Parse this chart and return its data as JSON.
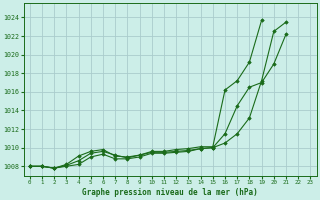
{
  "title": "Graphe pression niveau de la mer (hPa)",
  "background_color": "#cceee8",
  "grid_color": "#aacccc",
  "line_color": "#1a6b1a",
  "marker_color": "#1a6b1a",
  "xlim": [
    -0.5,
    23.5
  ],
  "ylim": [
    1007.0,
    1025.5
  ],
  "yticks": [
    1008,
    1010,
    1012,
    1014,
    1016,
    1018,
    1020,
    1022,
    1024
  ],
  "xticks": [
    0,
    1,
    2,
    3,
    4,
    5,
    6,
    7,
    8,
    9,
    10,
    11,
    12,
    13,
    14,
    15,
    16,
    17,
    18,
    19,
    20,
    21,
    22,
    23
  ],
  "series": [
    [
      1008.0,
      1008.0,
      1007.8,
      1008.0,
      1008.2,
      1009.0,
      1009.3,
      1008.8,
      1008.8,
      1009.0,
      1009.4,
      1009.4,
      1009.5,
      1009.6,
      1009.9,
      1010.0,
      1010.5,
      1011.5,
      1013.2,
      1017.2,
      1022.5,
      1023.5,
      null,
      null
    ],
    [
      1008.0,
      1008.0,
      1007.8,
      1008.1,
      1008.6,
      1009.4,
      1009.6,
      1009.2,
      1008.9,
      1009.2,
      1009.5,
      1009.5,
      1009.6,
      1009.7,
      1009.9,
      1010.0,
      1011.5,
      1014.5,
      1016.5,
      1017.0,
      1019.0,
      1022.2,
      null,
      null
    ],
    [
      1008.0,
      1008.0,
      1007.8,
      1008.2,
      1009.1,
      1009.6,
      1009.8,
      1009.1,
      1009.0,
      1009.2,
      1009.6,
      1009.6,
      1009.8,
      1009.9,
      1010.1,
      1010.1,
      1016.2,
      1017.2,
      1019.2,
      1023.7,
      null,
      null,
      null,
      null
    ]
  ]
}
